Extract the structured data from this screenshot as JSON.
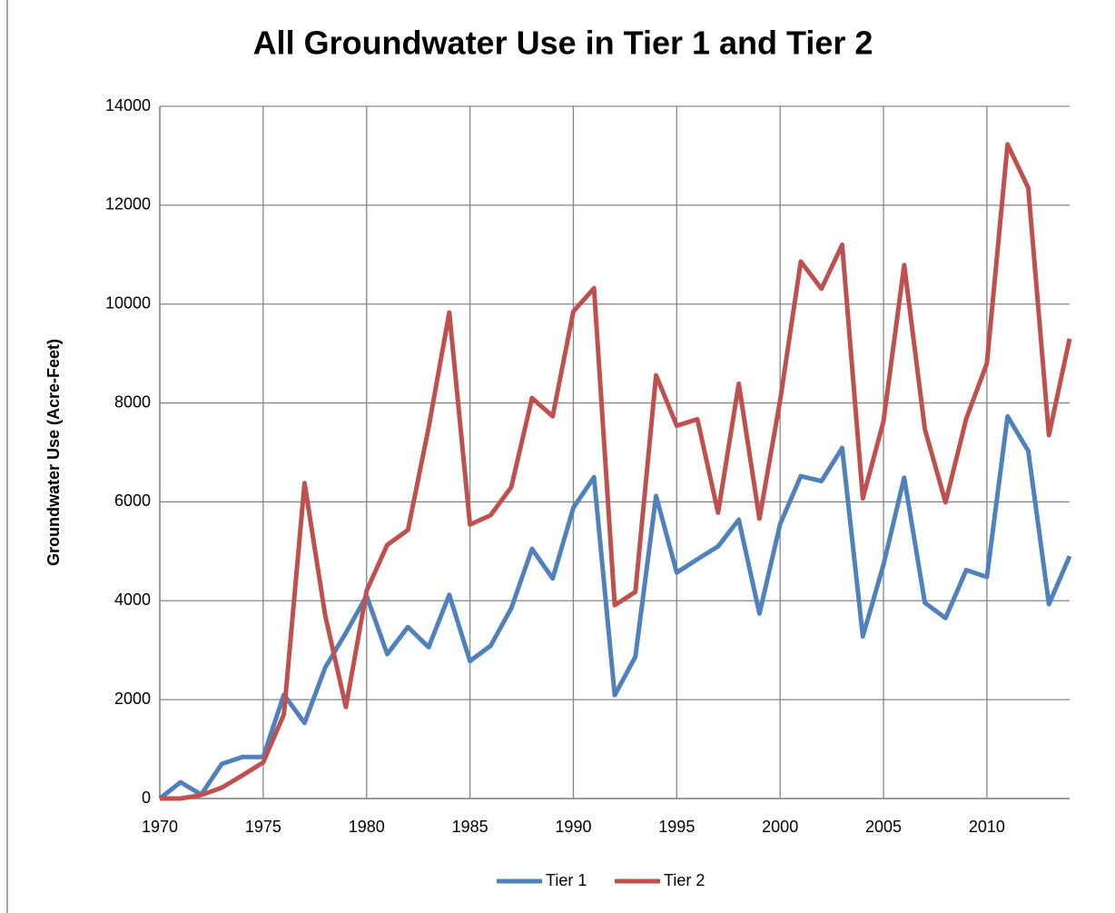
{
  "chart_data": {
    "type": "line",
    "title": "All Groundwater Use in Tier 1 and Tier 2",
    "y_label": "Groundwater Use (Acre-Feet)",
    "x": [
      1970,
      1971,
      1972,
      1973,
      1974,
      1975,
      1976,
      1977,
      1978,
      1979,
      1980,
      1981,
      1982,
      1983,
      1984,
      1985,
      1986,
      1987,
      1988,
      1989,
      1990,
      1991,
      1992,
      1993,
      1994,
      1995,
      1996,
      1997,
      1998,
      1999,
      2000,
      2001,
      2002,
      2003,
      2004,
      2005,
      2006,
      2007,
      2008,
      2009,
      2010,
      2011,
      2012,
      2013,
      2014
    ],
    "series": [
      {
        "name": "Tier 1",
        "color": "#4f81bd",
        "values": [
          0,
          330,
          80,
          700,
          840,
          840,
          2100,
          1530,
          2650,
          3350,
          4100,
          2920,
          3470,
          3060,
          4120,
          2780,
          3090,
          3850,
          5050,
          4450,
          5880,
          6500,
          2090,
          2870,
          6120,
          4570,
          4840,
          5100,
          5640,
          3740,
          5550,
          6520,
          6420,
          7090,
          3280,
          4730,
          6490,
          3960,
          3650,
          4620,
          4480,
          7730,
          7030,
          3930,
          4900
        ]
      },
      {
        "name": "Tier 2",
        "color": "#c0504d",
        "values": [
          0,
          0,
          70,
          220,
          470,
          730,
          1700,
          6380,
          3700,
          1850,
          4200,
          5130,
          5430,
          7500,
          9830,
          5540,
          5730,
          6300,
          8100,
          7730,
          9850,
          10320,
          3910,
          4180,
          8560,
          7540,
          7670,
          5780,
          8390,
          5660,
          8050,
          10860,
          10310,
          11200,
          6070,
          7630,
          10790,
          7470,
          5990,
          7680,
          8800,
          13230,
          12350,
          7350,
          9300
        ]
      }
    ],
    "xlim": [
      1970,
      2014
    ],
    "xticks": [
      1970,
      1975,
      1980,
      1985,
      1990,
      1995,
      2000,
      2005,
      2010
    ],
    "ylim": [
      0,
      14000
    ],
    "yticks": [
      0,
      2000,
      4000,
      6000,
      8000,
      10000,
      12000,
      14000
    ],
    "grid": true,
    "legend": "bottom"
  }
}
